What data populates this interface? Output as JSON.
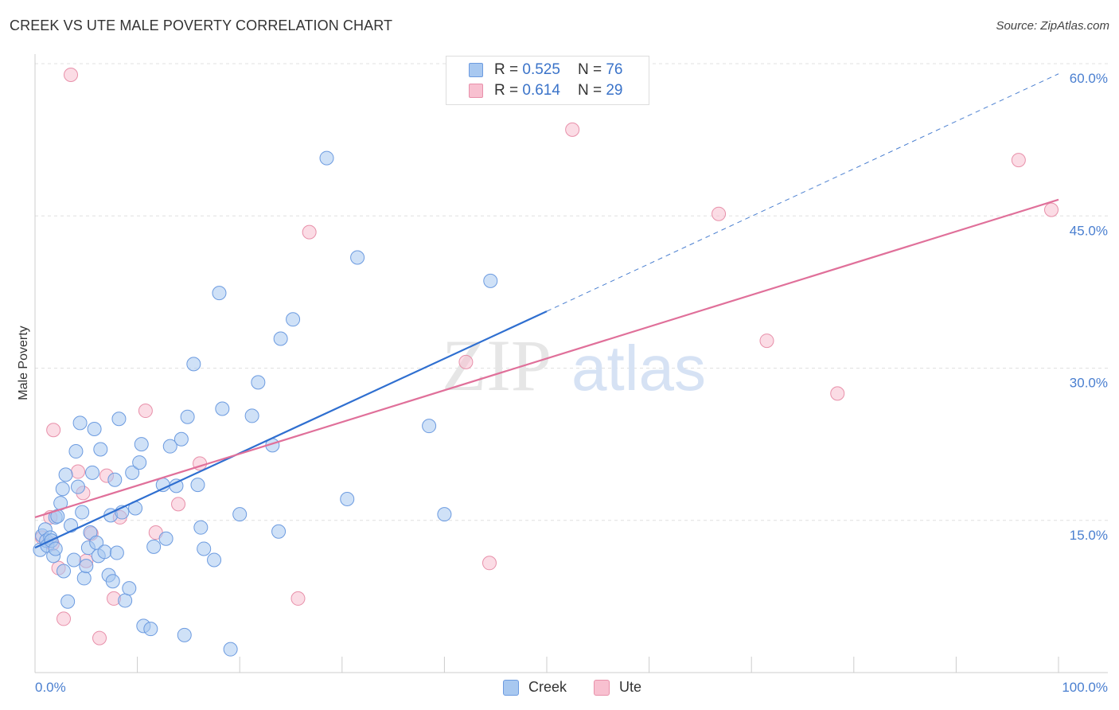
{
  "header": {
    "title": "CREEK VS UTE MALE POVERTY CORRELATION CHART",
    "source": "Source: ZipAtlas.com"
  },
  "watermark": {
    "zip": "ZIP",
    "atlas": "atlas"
  },
  "legend": {
    "rows": [
      {
        "r_label": "R =",
        "r_value": "0.525",
        "n_label": "N =",
        "n_value": "76",
        "color": "#a8c8f0",
        "border": "#6c9be0"
      },
      {
        "r_label": "R =",
        "r_value": "0.614",
        "n_label": "N =",
        "n_value": "29",
        "color": "#f8c0d0",
        "border": "#e890aa"
      }
    ]
  },
  "chart_data": {
    "type": "scatter",
    "title": "CREEK VS UTE MALE POVERTY CORRELATION CHART",
    "xlabel": "",
    "ylabel": "Male Poverty",
    "xlim": [
      0,
      100
    ],
    "ylim": [
      0,
      60
    ],
    "x_tick_labels": [
      "0.0%",
      "100.0%"
    ],
    "y_ticks": [
      15,
      30,
      45,
      60
    ],
    "y_tick_labels": [
      "15.0%",
      "30.0%",
      "45.0%",
      "60.0%"
    ],
    "grid": "horizontal dashed",
    "legend_position": "top-center",
    "series": [
      {
        "name": "Creek",
        "color": "#6c9be0",
        "fill": "#a8c8f0",
        "trend": {
          "x": [
            0,
            50
          ],
          "y": [
            12.3,
            35.6
          ],
          "extended_to_x": 100,
          "extended_y": 59.0
        },
        "points": [
          [
            0.5,
            12.1
          ],
          [
            0.7,
            13.5
          ],
          [
            1.0,
            14.1
          ],
          [
            1.1,
            13.0
          ],
          [
            1.2,
            12.5
          ],
          [
            1.5,
            13.3
          ],
          [
            1.6,
            13.0
          ],
          [
            1.8,
            11.5
          ],
          [
            2.0,
            15.3
          ],
          [
            2.0,
            12.2
          ],
          [
            2.2,
            15.4
          ],
          [
            2.5,
            16.7
          ],
          [
            2.7,
            18.1
          ],
          [
            2.8,
            10.0
          ],
          [
            3.0,
            19.5
          ],
          [
            3.2,
            7.0
          ],
          [
            3.5,
            14.5
          ],
          [
            3.8,
            11.1
          ],
          [
            4.0,
            21.8
          ],
          [
            4.2,
            18.3
          ],
          [
            4.4,
            24.6
          ],
          [
            4.6,
            15.8
          ],
          [
            4.8,
            9.3
          ],
          [
            5.0,
            10.5
          ],
          [
            5.2,
            12.3
          ],
          [
            5.4,
            13.8
          ],
          [
            5.6,
            19.7
          ],
          [
            5.8,
            24.0
          ],
          [
            6.0,
            12.8
          ],
          [
            6.2,
            11.5
          ],
          [
            6.4,
            22.0
          ],
          [
            6.8,
            11.9
          ],
          [
            7.2,
            9.6
          ],
          [
            7.4,
            15.5
          ],
          [
            7.6,
            9.0
          ],
          [
            7.8,
            19.0
          ],
          [
            8.0,
            11.8
          ],
          [
            8.2,
            25.0
          ],
          [
            8.5,
            15.8
          ],
          [
            8.8,
            7.1
          ],
          [
            9.2,
            8.3
          ],
          [
            9.5,
            19.7
          ],
          [
            9.8,
            16.2
          ],
          [
            10.2,
            20.7
          ],
          [
            10.4,
            22.5
          ],
          [
            10.6,
            4.6
          ],
          [
            11.3,
            4.3
          ],
          [
            11.6,
            12.4
          ],
          [
            12.5,
            18.5
          ],
          [
            12.8,
            13.2
          ],
          [
            13.2,
            22.3
          ],
          [
            13.8,
            18.4
          ],
          [
            14.3,
            23.0
          ],
          [
            14.6,
            3.7
          ],
          [
            14.9,
            25.2
          ],
          [
            15.5,
            30.4
          ],
          [
            15.9,
            18.5
          ],
          [
            16.2,
            14.3
          ],
          [
            16.5,
            12.2
          ],
          [
            17.5,
            11.1
          ],
          [
            18.0,
            37.4
          ],
          [
            18.3,
            26.0
          ],
          [
            19.1,
            2.3
          ],
          [
            20.0,
            15.6
          ],
          [
            21.2,
            25.3
          ],
          [
            21.8,
            28.6
          ],
          [
            23.2,
            22.4
          ],
          [
            23.8,
            13.9
          ],
          [
            24.0,
            32.9
          ],
          [
            25.2,
            34.8
          ],
          [
            28.5,
            50.7
          ],
          [
            30.5,
            17.1
          ],
          [
            31.5,
            40.9
          ],
          [
            38.5,
            24.3
          ],
          [
            40.0,
            15.6
          ],
          [
            44.5,
            38.6
          ]
        ]
      },
      {
        "name": "Ute",
        "color": "#e890aa",
        "fill": "#f8c0d0",
        "trend": {
          "x": [
            0,
            100
          ],
          "y": [
            15.3,
            46.6
          ]
        },
        "points": [
          [
            0.7,
            13.3
          ],
          [
            1.5,
            15.3
          ],
          [
            1.7,
            12.7
          ],
          [
            1.8,
            23.9
          ],
          [
            2.3,
            10.3
          ],
          [
            2.8,
            5.3
          ],
          [
            3.5,
            58.9
          ],
          [
            4.2,
            19.8
          ],
          [
            4.7,
            17.7
          ],
          [
            5.0,
            11.0
          ],
          [
            5.5,
            13.7
          ],
          [
            6.3,
            3.4
          ],
          [
            7.0,
            19.4
          ],
          [
            7.7,
            7.3
          ],
          [
            8.3,
            15.3
          ],
          [
            10.8,
            25.8
          ],
          [
            11.8,
            13.8
          ],
          [
            14.0,
            16.6
          ],
          [
            16.1,
            20.6
          ],
          [
            25.7,
            7.3
          ],
          [
            26.8,
            43.4
          ],
          [
            42.1,
            30.6
          ],
          [
            44.4,
            10.8
          ],
          [
            52.5,
            53.5
          ],
          [
            66.8,
            45.2
          ],
          [
            71.5,
            32.7
          ],
          [
            78.4,
            27.5
          ],
          [
            96.1,
            50.5
          ],
          [
            99.3,
            45.6
          ]
        ]
      }
    ]
  },
  "bottom_legend": {
    "items": [
      "Creek",
      "Ute"
    ]
  }
}
